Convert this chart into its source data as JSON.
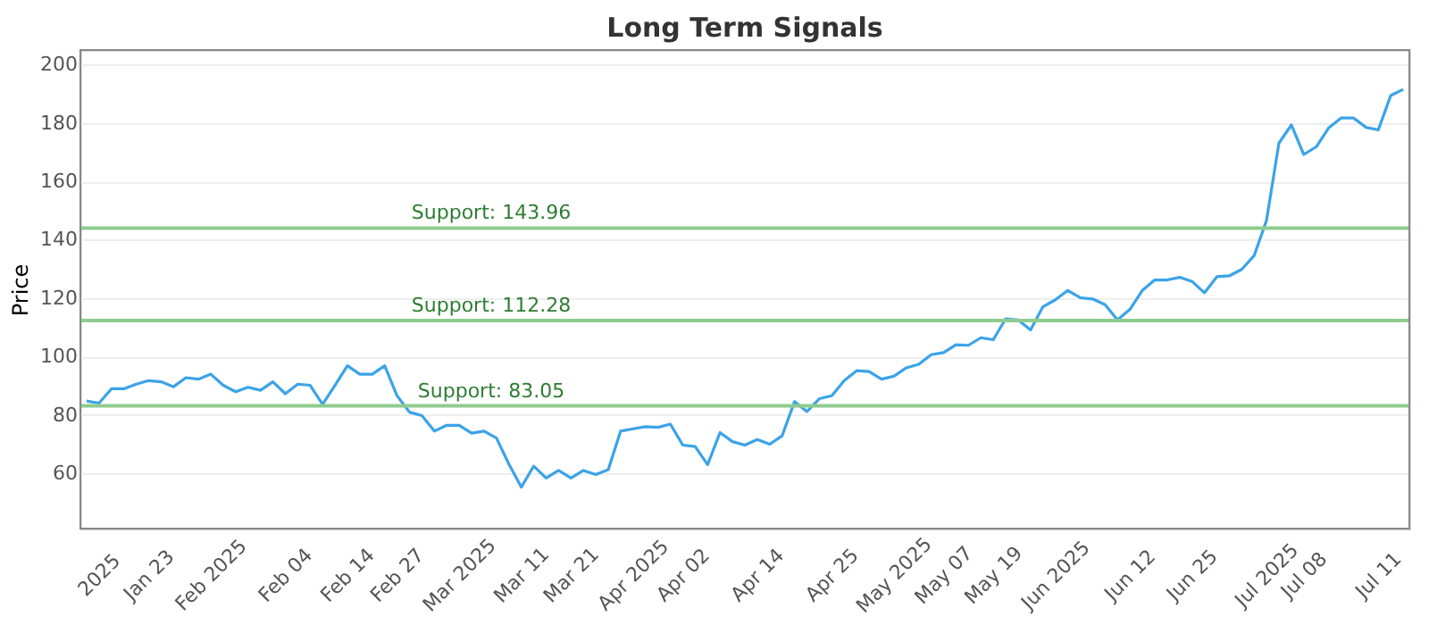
{
  "chart_data": {
    "type": "line",
    "title": "Long Term Signals",
    "ylabel": "Price",
    "categories": [
      null,
      "2025",
      null,
      null,
      null,
      "Jan 23",
      null,
      null,
      null,
      null,
      "Feb 2025",
      null,
      null,
      null,
      null,
      null,
      "Feb 04",
      null,
      null,
      null,
      null,
      "Feb 14",
      null,
      null,
      null,
      "Feb 27",
      null,
      null,
      null,
      null,
      "Mar 2025",
      null,
      null,
      null,
      null,
      "Mar 11",
      null,
      null,
      null,
      "Mar 21",
      null,
      null,
      null,
      null,
      "Apr 2025",
      null,
      null,
      null,
      "Apr 02",
      null,
      null,
      null,
      null,
      null,
      "Apr 14",
      null,
      null,
      null,
      null,
      null,
      "Apr 25",
      null,
      null,
      null,
      null,
      "May 2025",
      null,
      null,
      null,
      "May 07",
      null,
      null,
      null,
      "May 19",
      null,
      null,
      null,
      null,
      "Jun 2025",
      null,
      null,
      null,
      null,
      null,
      "Jun 12",
      null,
      null,
      null,
      null,
      "Jun 25",
      null,
      null,
      null,
      null,
      null,
      "Jul 2025",
      null,
      null,
      "Jul 08",
      null,
      null,
      null,
      null,
      null,
      "Jul 11",
      null,
      null
    ],
    "series": [
      {
        "color": "#3ba3e8",
        "values": [
          84.7,
          84.0,
          88.9,
          88.9,
          90.5,
          91.7,
          91.3,
          89.6,
          92.7,
          92.2,
          93.9,
          90.1,
          87.9,
          89.4,
          88.4,
          91.3,
          87.2,
          90.5,
          90.1,
          83.6,
          90.1,
          96.8,
          93.9,
          93.9,
          96.8,
          86.5,
          80.9,
          79.7,
          74.4,
          76.4,
          76.4,
          73.7,
          74.4,
          72.0,
          63.1,
          55.2,
          62.4,
          58.3,
          60.9,
          58.3,
          60.9,
          59.5,
          61.2,
          74.4,
          75.2,
          75.9,
          75.7,
          76.8,
          69.6,
          69.1,
          62.9,
          73.9,
          70.8,
          69.6,
          71.5,
          69.9,
          72.8,
          84.5,
          81.1,
          85.5,
          86.5,
          91.7,
          95.1,
          94.8,
          92.2,
          93.2,
          96.1,
          97.3,
          100.6,
          101.3,
          104.0,
          103.8,
          106.4,
          105.7,
          112.9,
          112.5,
          109.1,
          117.0,
          119.4,
          122.6,
          120.1,
          119.7,
          117.7,
          112.5,
          116.1,
          122.6,
          126.2,
          126.2,
          127.1,
          125.7,
          121.8,
          127.3,
          127.6,
          129.8,
          134.5,
          146.6,
          173.1,
          179.3,
          169.2,
          171.8,
          178.3,
          181.7,
          181.7,
          178.5,
          177.6,
          189.4,
          191.5
        ]
      }
    ],
    "ylim": [
      41,
      205
    ],
    "yticks": [
      60,
      80,
      100,
      120,
      140,
      160,
      180,
      200
    ],
    "grid": "y",
    "marker": "none",
    "line_style": "solid",
    "ref_lines": [
      {
        "axis": "y",
        "value": 143.96,
        "label": "Support: 143.96",
        "color": "#8fcc8f"
      },
      {
        "axis": "y",
        "value": 112.28,
        "label": "Support: 112.28",
        "color": "#8fcc8f"
      },
      {
        "axis": "y",
        "value": 83.05,
        "label": "Support: 83.05",
        "color": "#8fcc8f"
      }
    ]
  }
}
